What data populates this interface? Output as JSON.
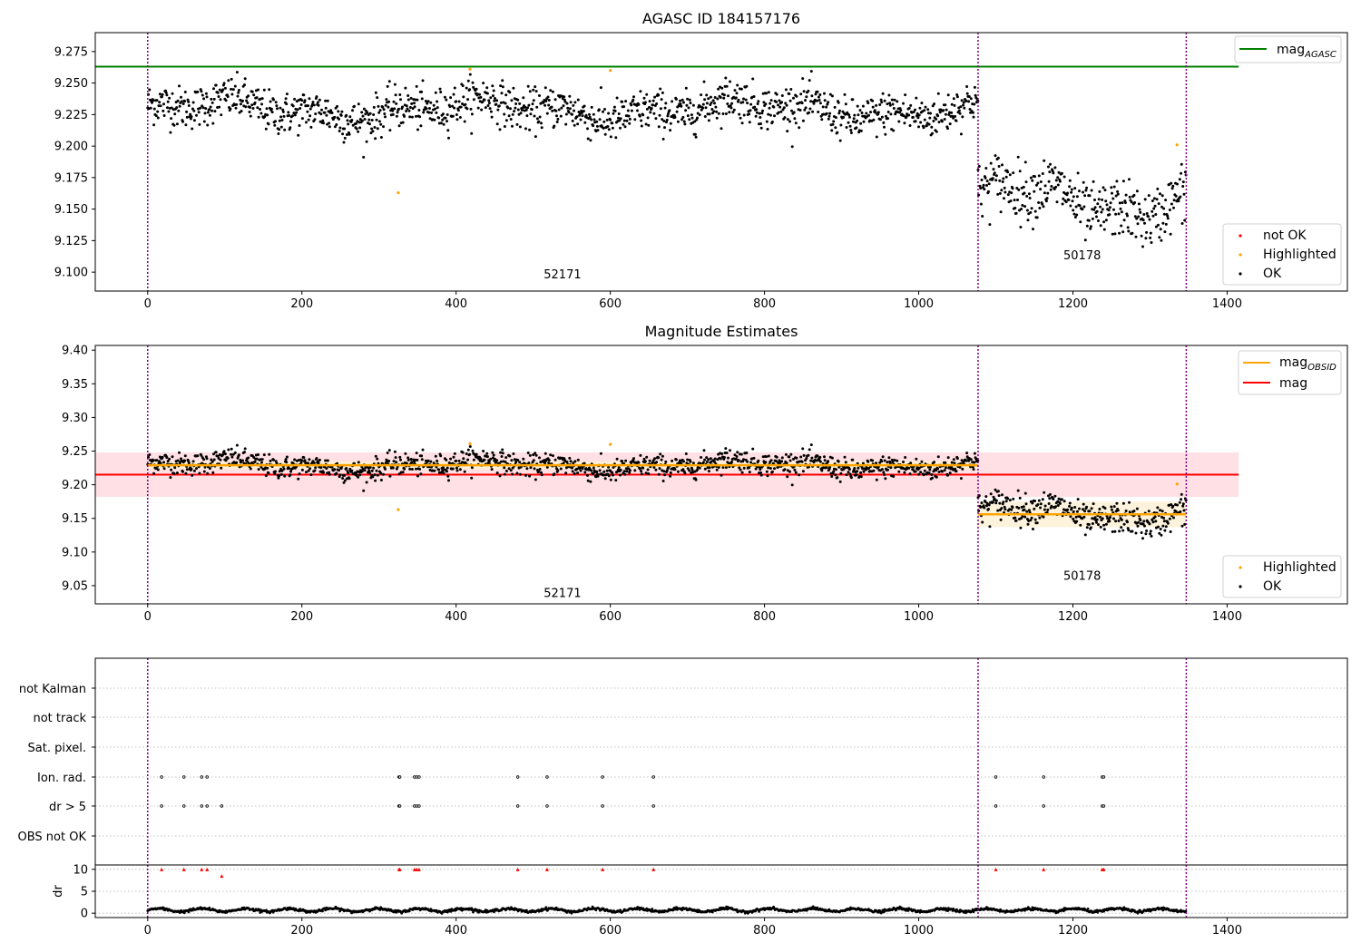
{
  "figure": {
    "title": "AGASC ID 184157176"
  },
  "chart_data": [
    {
      "type": "scatter",
      "title": "AGASC ID 184157176",
      "xlabel": "",
      "ylabel": "",
      "xlim": [
        -68,
        1556
      ],
      "ylim": [
        9.085,
        9.29
      ],
      "x_ticks": [
        0,
        200,
        400,
        600,
        800,
        1000,
        1200,
        1400
      ],
      "y_ticks": [
        9.1,
        9.125,
        9.15,
        9.175,
        9.2,
        9.225,
        9.25,
        9.275
      ],
      "y_tick_labels": [
        "9.100",
        "9.125",
        "9.150",
        "9.175",
        "9.200",
        "9.225",
        "9.250",
        "9.275"
      ],
      "obs_boundaries": [
        0,
        1077,
        1347
      ],
      "obs_labels": [
        {
          "text": "52171",
          "x": 538,
          "y": 9.095
        },
        {
          "text": "50178",
          "x": 1212,
          "y": 9.11
        }
      ],
      "mag_agasc": 9.263,
      "mag_agasc_xrange": [
        -68,
        1415
      ],
      "segments": [
        {
          "obsid": "52171",
          "x_range": [
            0,
            1077
          ],
          "mean": 9.229,
          "noise": 0.011
        },
        {
          "obsid": "50178",
          "x_range": [
            1077,
            1347
          ],
          "mean": 9.157,
          "noise": 0.015
        }
      ],
      "highlighted_points": [
        {
          "x": 325,
          "y": 9.163
        },
        {
          "x": 418,
          "y": 9.261
        },
        {
          "x": 600,
          "y": 9.26
        },
        {
          "x": 1335,
          "y": 9.201
        }
      ],
      "legend_top": {
        "position": "upper-right",
        "entries": [
          {
            "label": "mag",
            "sub": "AGASC",
            "color": "#008000"
          }
        ]
      },
      "legend_bottom": {
        "position": "lower-right",
        "entries": [
          {
            "label": "not OK",
            "color": "#ff0000"
          },
          {
            "label": "Highlighted",
            "color": "#ffa500"
          },
          {
            "label": "OK",
            "color": "#000000"
          }
        ]
      }
    },
    {
      "type": "scatter",
      "title": "Magnitude Estimates",
      "xlabel": "",
      "ylabel": "",
      "xlim": [
        -68,
        1556
      ],
      "ylim": [
        9.023,
        9.407
      ],
      "x_ticks": [
        0,
        200,
        400,
        600,
        800,
        1000,
        1200,
        1400
      ],
      "y_ticks": [
        9.05,
        9.1,
        9.15,
        9.2,
        9.25,
        9.3,
        9.35,
        9.4
      ],
      "y_tick_labels": [
        "9.05",
        "9.10",
        "9.15",
        "9.20",
        "9.25",
        "9.30",
        "9.35",
        "9.40"
      ],
      "obs_boundaries": [
        0,
        1077,
        1347
      ],
      "obs_labels": [
        {
          "text": "52171",
          "x": 538,
          "y": 9.033
        },
        {
          "text": "50178",
          "x": 1212,
          "y": 9.059
        }
      ],
      "mag": 9.215,
      "mag_band": [
        9.182,
        9.248
      ],
      "mag_xrange": [
        -68,
        1415
      ],
      "mag_obsid": [
        {
          "obsid": "52171",
          "value": 9.229,
          "band": [
            9.223,
            9.235
          ],
          "x_range": [
            0,
            1077
          ]
        },
        {
          "obsid": "50178",
          "value": 9.156,
          "band": [
            9.137,
            9.175
          ],
          "x_range": [
            1077,
            1347
          ]
        }
      ],
      "highlighted_points": [
        {
          "x": 325,
          "y": 9.163
        },
        {
          "x": 418,
          "y": 9.261
        },
        {
          "x": 600,
          "y": 9.26
        },
        {
          "x": 1335,
          "y": 9.201
        }
      ],
      "legend_top": {
        "position": "upper-right",
        "entries": [
          {
            "label": "mag",
            "sub": "OBSID",
            "color": "#ffa500"
          },
          {
            "label": "mag",
            "sub": "",
            "color": "#ff0000"
          }
        ]
      },
      "legend_bottom": {
        "position": "lower-right",
        "entries": [
          {
            "label": "Highlighted",
            "color": "#ffa500"
          },
          {
            "label": "OK",
            "color": "#000000"
          }
        ]
      }
    },
    {
      "type": "scatter",
      "title": "",
      "xlabel": "",
      "ylabel": "",
      "xlim": [
        -68,
        1556
      ],
      "categories": [
        "not Kalman",
        "not track",
        "Sat. pixel.",
        "Ion. rad.",
        "dr > 5",
        "OBS not OK"
      ],
      "flag_x": {
        "Ion. rad.": [
          18,
          47,
          70,
          77,
          326,
          327,
          346,
          349,
          352,
          480,
          518,
          590,
          656,
          1100,
          1162,
          1238,
          1240
        ],
        "dr > 5": [
          18,
          47,
          70,
          77,
          96,
          326,
          327,
          346,
          349,
          352,
          480,
          518,
          590,
          656,
          1100,
          1162,
          1238,
          1240
        ]
      },
      "obs_boundaries": [
        0,
        1077,
        1347
      ]
    },
    {
      "type": "scatter",
      "title": "",
      "xlabel": "",
      "ylabel": "dr",
      "xlim": [
        -68,
        1556
      ],
      "ylim": [
        -1,
        11
      ],
      "x_ticks": [
        0,
        200,
        400,
        600,
        800,
        1000,
        1200,
        1400
      ],
      "y_ticks": [
        0,
        5,
        10
      ],
      "y_tick_labels": [
        "0",
        "5",
        "10"
      ],
      "dr_baseline": 0.7,
      "dr_outliers": [
        {
          "x": 18,
          "y": 10
        },
        {
          "x": 47,
          "y": 10
        },
        {
          "x": 70,
          "y": 10
        },
        {
          "x": 77,
          "y": 10
        },
        {
          "x": 96,
          "y": 8.5
        },
        {
          "x": 326,
          "y": 10
        },
        {
          "x": 327,
          "y": 10
        },
        {
          "x": 346,
          "y": 10
        },
        {
          "x": 349,
          "y": 10
        },
        {
          "x": 352,
          "y": 10
        },
        {
          "x": 480,
          "y": 10
        },
        {
          "x": 518,
          "y": 10
        },
        {
          "x": 590,
          "y": 10
        },
        {
          "x": 656,
          "y": 10
        },
        {
          "x": 1100,
          "y": 10
        },
        {
          "x": 1162,
          "y": 10
        },
        {
          "x": 1238,
          "y": 10
        },
        {
          "x": 1240,
          "y": 10
        }
      ],
      "obs_boundaries": [
        0,
        1077,
        1347
      ]
    }
  ],
  "colors": {
    "ok": "#000000",
    "highlighted": "#ffa500",
    "not_ok": "#ff0000",
    "mag_agasc": "#008000",
    "mag": "#ff0000",
    "mag_obsid": "#ffa500",
    "boundary": "#800080",
    "grid": "#b0b0b0",
    "mag_band": "#ffe0e4",
    "obsid_band": "#fdf1d6"
  }
}
